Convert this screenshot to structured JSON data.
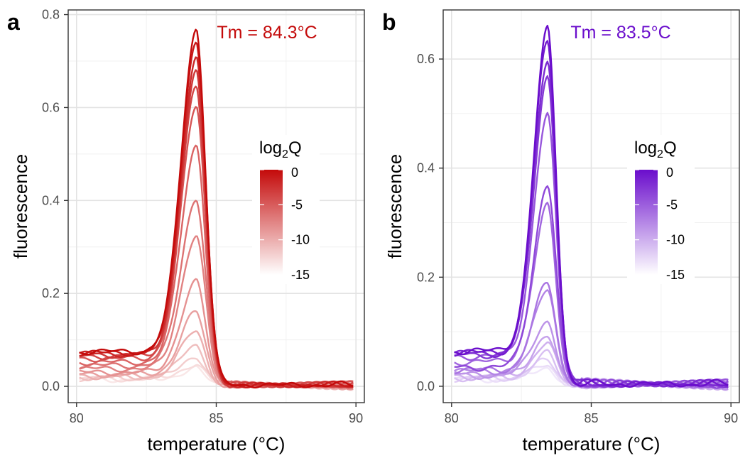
{
  "chart_data": [
    {
      "type": "line",
      "panel_tag": "a",
      "annotation": "Tm = 84.3°C",
      "xlabel": "temperature (°C)",
      "ylabel": "fluorescence",
      "xlim": [
        79.7,
        90.3
      ],
      "ylim": [
        -0.035,
        0.81
      ],
      "x_ticks": [
        80,
        85,
        90
      ],
      "x_tick_labels": [
        "80",
        "85",
        "90"
      ],
      "y_ticks": [
        0.0,
        0.2,
        0.4,
        0.6,
        0.8
      ],
      "y_tick_labels": [
        "0.0",
        "0.2",
        "0.4",
        "0.6",
        "0.8"
      ],
      "grid": true,
      "color_high": "#c40a0a",
      "color_low": "#ffffff",
      "legend": {
        "title_main": "log",
        "title_sub": "2",
        "title_end": "Q",
        "placement": "center-right",
        "ticks": [
          0,
          -5,
          -10,
          -15
        ],
        "tick_labels": [
          "0",
          "-5",
          "-10",
          "-15"
        ],
        "range": [
          -15,
          0
        ]
      },
      "curve_model": {
        "peak_temp": 84.3,
        "sigma_left": 0.55,
        "sigma_right": 0.33,
        "x_start": 80.1,
        "x_end": 89.9,
        "tail": 0.003
      },
      "series": [
        {
          "log2Q": 0,
          "peak": 0.77,
          "baseline": 0.075
        },
        {
          "log2Q": -1,
          "peak": 0.745,
          "baseline": 0.072
        },
        {
          "log2Q": -2,
          "peak": 0.71,
          "baseline": 0.07
        },
        {
          "log2Q": -3,
          "peak": 0.675,
          "baseline": 0.068
        },
        {
          "log2Q": -4,
          "peak": 0.645,
          "baseline": 0.065
        },
        {
          "log2Q": -5,
          "peak": 0.605,
          "baseline": 0.06
        },
        {
          "log2Q": -6,
          "peak": 0.52,
          "baseline": 0.052
        },
        {
          "log2Q": -7,
          "peak": 0.405,
          "baseline": 0.045
        },
        {
          "log2Q": -8,
          "peak": 0.325,
          "baseline": 0.038
        },
        {
          "log2Q": -9,
          "peak": 0.225,
          "baseline": 0.03
        },
        {
          "log2Q": -10,
          "peak": 0.16,
          "baseline": 0.026
        },
        {
          "log2Q": -11,
          "peak": 0.12,
          "baseline": 0.022
        },
        {
          "log2Q": -12,
          "peak": 0.09,
          "baseline": 0.02
        },
        {
          "log2Q": -13,
          "peak": 0.065,
          "baseline": 0.018
        },
        {
          "log2Q": -14,
          "peak": 0.048,
          "baseline": 0.016
        },
        {
          "log2Q": -15,
          "peak": 0.038,
          "baseline": 0.015
        }
      ]
    },
    {
      "type": "line",
      "panel_tag": "b",
      "annotation": "Tm = 83.5°C",
      "xlabel": "temperature (°C)",
      "ylabel": "fluorescence",
      "xlim": [
        79.7,
        90.3
      ],
      "ylim": [
        -0.03,
        0.69
      ],
      "x_ticks": [
        80,
        85,
        90
      ],
      "x_tick_labels": [
        "80",
        "85",
        "90"
      ],
      "y_ticks": [
        0.0,
        0.2,
        0.4,
        0.6
      ],
      "y_tick_labels": [
        "0.0",
        "0.2",
        "0.4",
        "0.6"
      ],
      "grid": true,
      "color_high": "#6a0dcc",
      "color_low": "#ffffff",
      "legend": {
        "title_main": "log",
        "title_sub": "2",
        "title_end": "Q",
        "placement": "center-right",
        "ticks": [
          0,
          -5,
          -10,
          -15
        ],
        "tick_labels": [
          "0",
          "-5",
          "-10",
          "-15"
        ],
        "range": [
          -15,
          0
        ]
      },
      "curve_model": {
        "peak_temp": 83.45,
        "sigma_left": 0.5,
        "sigma_right": 0.3,
        "x_start": 80.1,
        "x_end": 89.9,
        "tail": 0.004
      },
      "series": [
        {
          "log2Q": 0,
          "peak": 0.655,
          "baseline": 0.065
        },
        {
          "log2Q": -1,
          "peak": 0.635,
          "baseline": 0.062
        },
        {
          "log2Q": -2,
          "peak": 0.6,
          "baseline": 0.06
        },
        {
          "log2Q": -3,
          "peak": 0.57,
          "baseline": 0.058
        },
        {
          "log2Q": -4,
          "peak": 0.37,
          "baseline": 0.035
        },
        {
          "log2Q": -5,
          "peak": 0.5,
          "baseline": 0.055
        },
        {
          "log2Q": -6,
          "peak": 0.33,
          "baseline": 0.045
        },
        {
          "log2Q": -7,
          "peak": 0.19,
          "baseline": 0.03
        },
        {
          "log2Q": -8,
          "peak": 0.18,
          "baseline": 0.028
        },
        {
          "log2Q": -9,
          "peak": 0.12,
          "baseline": 0.022
        },
        {
          "log2Q": -10,
          "peak": 0.095,
          "baseline": 0.02
        },
        {
          "log2Q": -11,
          "peak": 0.08,
          "baseline": 0.018
        },
        {
          "log2Q": -12,
          "peak": 0.06,
          "baseline": 0.016
        },
        {
          "log2Q": -13,
          "peak": 0.048,
          "baseline": 0.015
        },
        {
          "log2Q": -14,
          "peak": 0.04,
          "baseline": 0.014
        },
        {
          "log2Q": -15,
          "peak": 0.035,
          "baseline": 0.013
        }
      ]
    }
  ]
}
